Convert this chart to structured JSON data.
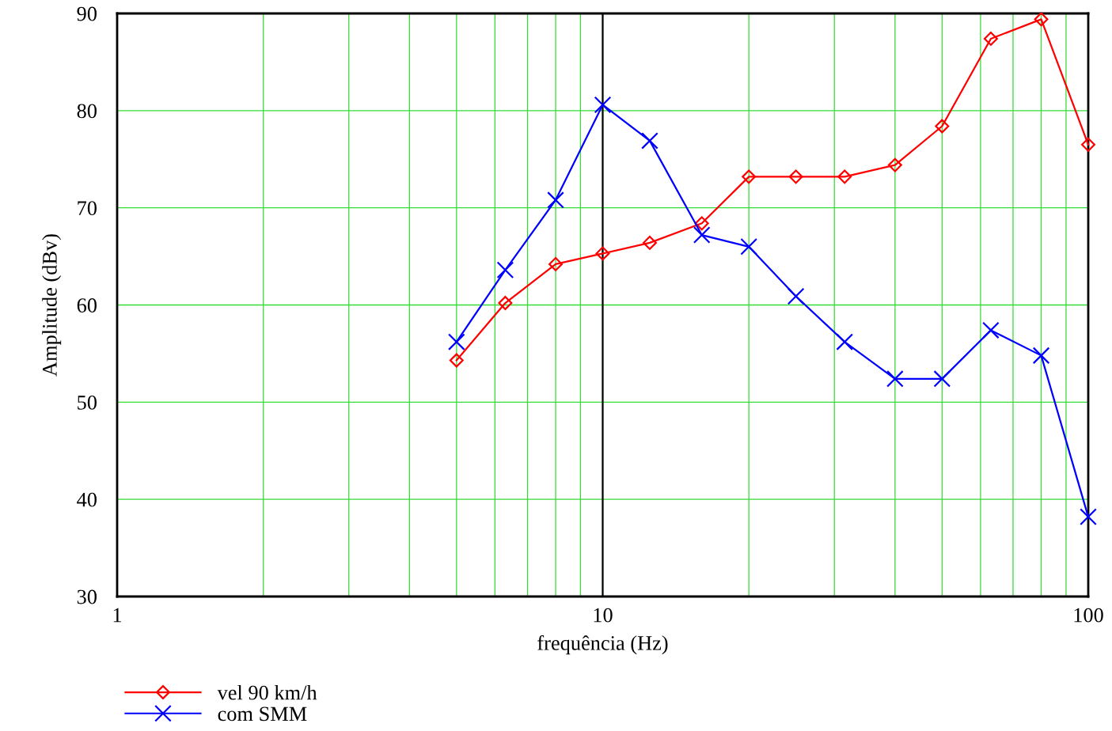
{
  "chart_data": {
    "type": "line",
    "xlabel": "frequência (Hz)",
    "ylabel": "Amplitude (dBv)",
    "x": [
      5,
      6.3,
      8,
      10,
      12.5,
      16,
      20,
      25,
      31.5,
      40,
      50,
      63,
      80,
      100
    ],
    "series": [
      {
        "name": "vel 90 km/h",
        "color": "#ff0000",
        "marker": "diamond",
        "values": [
          54.3,
          60.2,
          64.2,
          65.3,
          66.4,
          68.4,
          73.2,
          73.2,
          73.2,
          74.4,
          78.4,
          87.4,
          89.4,
          76.5
        ]
      },
      {
        "name": "com SMM",
        "color": "#0000ff",
        "marker": "cross",
        "values": [
          56.2,
          63.6,
          70.8,
          80.6,
          76.9,
          67.2,
          66.0,
          60.9,
          56.2,
          52.4,
          52.4,
          57.4,
          54.8,
          38.2
        ]
      }
    ],
    "log": "x",
    "xlim": [
      1,
      100
    ],
    "xticks": [
      1,
      10,
      100
    ],
    "ylim": [
      30,
      90
    ],
    "yticks": [
      30,
      40,
      50,
      60,
      70,
      80,
      90
    ],
    "grid": true,
    "ref_lines": [
      {
        "axis": "x",
        "value": 10,
        "color": "#000000"
      }
    ],
    "legend": "bottom left",
    "line_style": "solid"
  }
}
